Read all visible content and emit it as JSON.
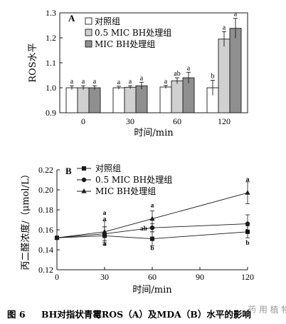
{
  "colors": {
    "control": "#ffffff",
    "mic05": "#d0d0d0",
    "mic": "#8f8f8f",
    "ink": "#1a1a1a",
    "watermark": "#9a9a9a"
  },
  "chart_data": [
    {
      "type": "bar",
      "panel": "A",
      "categories": [
        "0",
        "30",
        "60",
        "120"
      ],
      "xlabel": "时间/min",
      "ylabel": "ROS水平",
      "ylim": [
        0.9,
        1.3
      ],
      "yticks": [
        "0.9",
        "1.0",
        "1.1",
        "1.2",
        "1.3"
      ],
      "legend_position": "top-left",
      "series": [
        {
          "name": "对照组",
          "values": [
            1.0,
            1.0,
            1.003,
            1.0
          ],
          "errors": [
            0.008,
            0.006,
            0.006,
            0.03
          ],
          "labels": [
            "a",
            "a",
            "a",
            "b"
          ]
        },
        {
          "name": "0.5 MIC BH处理组",
          "values": [
            1.0,
            1.002,
            1.028,
            1.195
          ],
          "errors": [
            0.008,
            0.006,
            0.012,
            0.03
          ],
          "labels": [
            "a",
            "a",
            "ab",
            "a"
          ]
        },
        {
          "name": "MIC BH处理组",
          "values": [
            1.0,
            1.008,
            1.04,
            1.238
          ],
          "errors": [
            0.008,
            0.014,
            0.022,
            0.04
          ],
          "labels": [
            "a",
            "a",
            "a",
            "a"
          ]
        }
      ]
    },
    {
      "type": "line",
      "panel": "B",
      "x": [
        0,
        30,
        60,
        120
      ],
      "xticks": [
        "0",
        "30",
        "60",
        "90",
        "120"
      ],
      "xlabel": "时间/min",
      "ylabel": "丙二醛浓度/（μmol/L）",
      "ylim": [
        0.12,
        0.22
      ],
      "yticks": [
        "0.12",
        "0.14",
        "0.16",
        "0.18",
        "0.20",
        "0.22"
      ],
      "legend_position": "top-left",
      "series": [
        {
          "name": "对照组",
          "marker": "square",
          "values": [
            0.152,
            0.154,
            0.151,
            0.158
          ],
          "errors": [
            0,
            0.009,
            0.007,
            0.006
          ],
          "labels": [
            "",
            "a",
            "b",
            "b"
          ]
        },
        {
          "name": "0.5 MIC BH处理组",
          "marker": "circle",
          "values": [
            0.152,
            0.156,
            0.162,
            0.166
          ],
          "errors": [
            0,
            0.007,
            0.004,
            0.009
          ],
          "labels": [
            "",
            "a",
            "ab",
            "b"
          ]
        },
        {
          "name": "MIC BH处理组",
          "marker": "triangle",
          "values": [
            0.152,
            0.158,
            0.171,
            0.197
          ],
          "errors": [
            0,
            0.011,
            0.008,
            0.011
          ],
          "labels": [
            "",
            "a",
            "a",
            "a"
          ]
        }
      ]
    }
  ],
  "caption": {
    "fig_no": "图 6",
    "text": "BH对指状青霉ROS（A）及MDA（B）水平的影响"
  },
  "watermark": "药 用 植 物 学"
}
